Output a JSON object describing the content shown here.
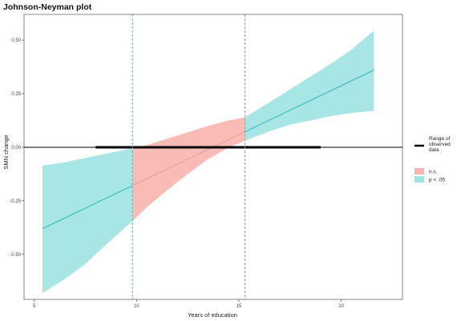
{
  "chart_data": {
    "type": "line",
    "title": "Johnson-Neyman plot",
    "xlabel": "Years of education",
    "ylabel": "SMN change",
    "xlim": [
      4.5,
      23.0
    ],
    "ylim": [
      -0.71,
      0.62
    ],
    "x_ticks": [
      5,
      10,
      15,
      20
    ],
    "y_ticks": [
      -0.5,
      -0.25,
      0.0,
      0.25,
      0.5
    ],
    "x_tick_labels": [
      "5",
      "10",
      "15",
      "20"
    ],
    "y_tick_labels": [
      "-0.50",
      "-0.25",
      "0.00",
      "0.25",
      "0.50"
    ],
    "grid": false,
    "legend_position": "right",
    "line": {
      "x": [
        5.4,
        21.6
      ],
      "y": [
        -0.38,
        0.36
      ],
      "color": "#3dbfbf"
    },
    "confidence_band": {
      "x": [
        5.4,
        6.5,
        7.5,
        8.5,
        9.5,
        9.8,
        10.5,
        11.5,
        12.5,
        13.0,
        13.5,
        14.5,
        15.3,
        16.5,
        17.5,
        18.5,
        19.5,
        20.5,
        21.6
      ],
      "lower": [
        -0.68,
        -0.615,
        -0.545,
        -0.455,
        -0.37,
        -0.345,
        -0.28,
        -0.2,
        -0.125,
        -0.09,
        -0.055,
        0.0,
        0.03,
        0.075,
        0.105,
        0.125,
        0.145,
        0.16,
        0.17
      ],
      "upper": [
        -0.085,
        -0.07,
        -0.05,
        -0.03,
        -0.01,
        -0.005,
        0.01,
        0.04,
        0.07,
        0.085,
        0.1,
        0.125,
        0.14,
        0.21,
        0.27,
        0.33,
        0.39,
        0.455,
        0.545
      ]
    },
    "significance_boundaries": [
      9.8,
      15.3
    ],
    "boundary_color": "#3dbfbf",
    "range_of_observed_data": [
      8.0,
      19.0
    ],
    "reference_line_y": 0.0,
    "regions": [
      {
        "name": "n.s.",
        "x_from": 9.8,
        "x_to": 15.3,
        "color": "#f8b4ae"
      },
      {
        "name": "p < .05",
        "x_from": 5.4,
        "x_to": 9.8,
        "color": "#9fe3e3"
      },
      {
        "name": "p < .05",
        "x_from": 15.3,
        "x_to": 21.6,
        "color": "#9fe3e3"
      }
    ],
    "legend": [
      {
        "label": "Range of\nobserved\ndata",
        "type": "line",
        "color": "#000000"
      },
      {
        "label": "n.s.",
        "type": "fill",
        "color": "#f8b4ae"
      },
      {
        "label": "p < .05",
        "type": "fill",
        "color": "#9fe3e3"
      }
    ]
  }
}
